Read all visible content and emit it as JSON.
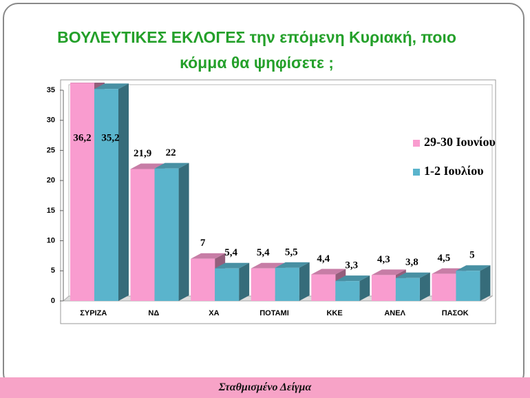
{
  "chart_data": {
    "type": "bar",
    "title": "ΒΟΥΛΕΥΤΙΚΕΣ   ΕΚΛΟΓΕΣ  την επόμενη Κυριακή, ποιο κόμμα θα ψηφίσετε ;",
    "categories": [
      "ΣΥΡΙΖΑ",
      "ΝΔ",
      "ΧΑ",
      "ΠΟΤΑΜΙ",
      "ΚΚΕ",
      "ΑΝΕΛ",
      "ΠΑΣΟΚ"
    ],
    "series": [
      {
        "name": "29-30 Ιουνίου",
        "color": "#f99ccf",
        "values": [
          36.2,
          21.9,
          7,
          5.4,
          4.4,
          4.3,
          4.5
        ],
        "value_labels": [
          "36,2",
          "21,9",
          "7",
          "5,4",
          "4,4",
          "4,3",
          "4,5"
        ]
      },
      {
        "name": "1-2 Ιουλίου",
        "color": "#5ab4cc",
        "values": [
          35.2,
          22,
          5.4,
          5.5,
          3.3,
          3.8,
          5
        ],
        "value_labels": [
          "35,2",
          "22",
          "5,4",
          "5,5",
          "3,3",
          "3,8",
          "5"
        ]
      }
    ],
    "ylim": [
      0,
      35
    ],
    "yticks": [
      0,
      5,
      10,
      15,
      20,
      25,
      30,
      35
    ],
    "legend": "right",
    "caption": "Σταθμισμένο Δείγμα"
  }
}
